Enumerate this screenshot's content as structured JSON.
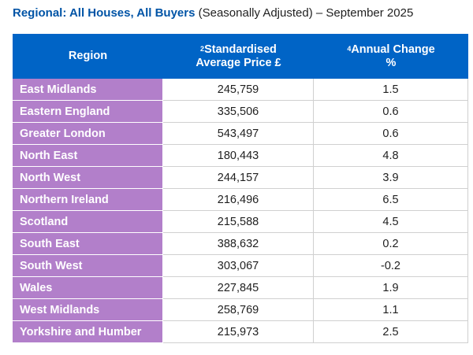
{
  "title": {
    "bold": "Regional: All Houses, All Buyers",
    "rest": " (Seasonally Adjusted) – September 2025"
  },
  "headers": {
    "region": "Region",
    "price_sup": "2",
    "price_line1": "Standardised",
    "price_line2": "Average Price £",
    "change_sup": "4",
    "change_line1": "Annual Change",
    "change_line2": "%"
  },
  "rows": [
    {
      "region": "East Midlands",
      "price": "245,759",
      "change": "1.5"
    },
    {
      "region": "Eastern England",
      "price": "335,506",
      "change": "0.6"
    },
    {
      "region": "Greater London",
      "price": "543,497",
      "change": "0.6"
    },
    {
      "region": "North East",
      "price": "180,443",
      "change": "4.8"
    },
    {
      "region": "North West",
      "price": "244,157",
      "change": "3.9"
    },
    {
      "region": "Northern Ireland",
      "price": "216,496",
      "change": "6.5"
    },
    {
      "region": "Scotland",
      "price": "215,588",
      "change": "4.5"
    },
    {
      "region": "South East",
      "price": "388,632",
      "change": "0.2"
    },
    {
      "region": "South West",
      "price": "303,067",
      "change": "-0.2"
    },
    {
      "region": "Wales",
      "price": "227,845",
      "change": "1.9"
    },
    {
      "region": "West Midlands",
      "price": "258,769",
      "change": "1.1"
    },
    {
      "region": "Yorkshire and Humber",
      "price": "215,973",
      "change": "2.5"
    }
  ],
  "colors": {
    "header_bg": "#0064c6",
    "region_bg": "#b27fca",
    "title_accent": "#0054a6"
  }
}
